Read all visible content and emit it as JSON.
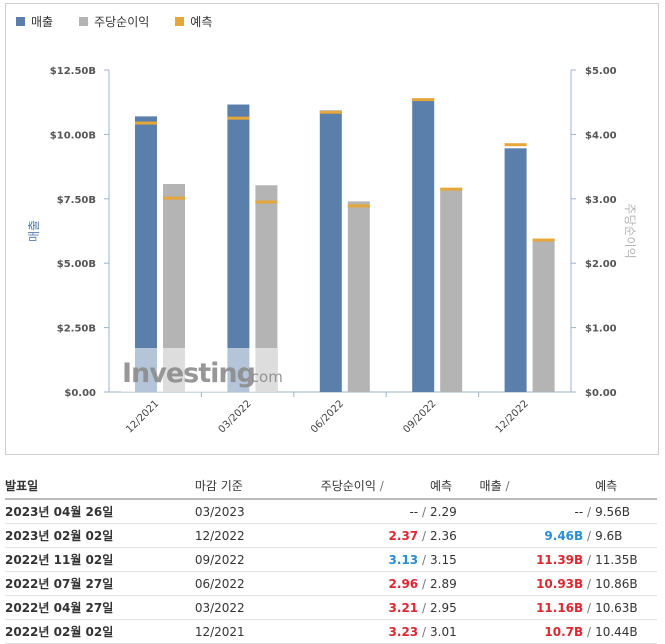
{
  "legend": {
    "revenue": "매출",
    "eps": "주당순이익",
    "forecast": "예측"
  },
  "colors": {
    "revenue": "#5a7faa",
    "eps": "#b4b4b4",
    "forecast": "#e5a63a",
    "beat": "#2a8ed6",
    "miss": "#e0262f"
  },
  "watermark": {
    "brand": "Investing",
    "suffix": ".com"
  },
  "chart_data": {
    "type": "bar",
    "categories": [
      "12/2021",
      "03/2022",
      "06/2022",
      "09/2022",
      "12/2022"
    ],
    "series": [
      {
        "name": "매출",
        "axis": "left",
        "values": [
          10.7,
          11.16,
          10.93,
          11.39,
          9.46
        ],
        "forecast": [
          10.44,
          10.63,
          10.86,
          11.35,
          9.6
        ]
      },
      {
        "name": "주당순이익",
        "axis": "right",
        "values": [
          3.23,
          3.21,
          2.96,
          3.13,
          2.37
        ],
        "forecast": [
          3.01,
          2.95,
          2.89,
          3.15,
          2.36
        ]
      }
    ],
    "ylabel_left": "매출",
    "ylabel_right": "주당순이익",
    "ylim_left": [
      0,
      12.5
    ],
    "ylim_right": [
      0,
      5
    ],
    "left_ticks": [
      "$0.00",
      "$2.50B",
      "$5.00B",
      "$7.50B",
      "$10.00B",
      "$12.50B"
    ],
    "right_ticks": [
      "$0.00",
      "$1.00",
      "$2.00",
      "$3.00",
      "$4.00",
      "$5.00"
    ],
    "grid": false
  },
  "table": {
    "headers": {
      "date": "발표일",
      "period": "마감 기준",
      "eps": "주당순이익",
      "eps_forecast": "예측",
      "revenue": "매출",
      "revenue_forecast": "예측",
      "slash": "/"
    },
    "rows": [
      {
        "date": "2023년 04월 26일",
        "period": "03/2023",
        "eps": "--",
        "eps_class": "plain",
        "eps_forecast": "2.29",
        "revenue": "--",
        "revenue_class": "plain",
        "revenue_forecast": "9.56B"
      },
      {
        "date": "2023년 02월 02일",
        "period": "12/2022",
        "eps": "2.37",
        "eps_class": "red",
        "eps_forecast": "2.36",
        "revenue": "9.46B",
        "revenue_class": "blue",
        "revenue_forecast": "9.6B"
      },
      {
        "date": "2022년 11월 02일",
        "period": "09/2022",
        "eps": "3.13",
        "eps_class": "blue",
        "eps_forecast": "3.15",
        "revenue": "11.39B",
        "revenue_class": "red",
        "revenue_forecast": "11.35B"
      },
      {
        "date": "2022년 07월 27일",
        "period": "06/2022",
        "eps": "2.96",
        "eps_class": "red",
        "eps_forecast": "2.89",
        "revenue": "10.93B",
        "revenue_class": "red",
        "revenue_forecast": "10.86B"
      },
      {
        "date": "2022년 04월 27일",
        "period": "03/2022",
        "eps": "3.21",
        "eps_class": "red",
        "eps_forecast": "2.95",
        "revenue": "11.16B",
        "revenue_class": "red",
        "revenue_forecast": "10.63B"
      },
      {
        "date": "2022년 02월 02일",
        "period": "12/2021",
        "eps": "3.23",
        "eps_class": "red",
        "eps_forecast": "3.01",
        "revenue": "10.7B",
        "revenue_class": "red",
        "revenue_forecast": "10.44B"
      }
    ]
  }
}
